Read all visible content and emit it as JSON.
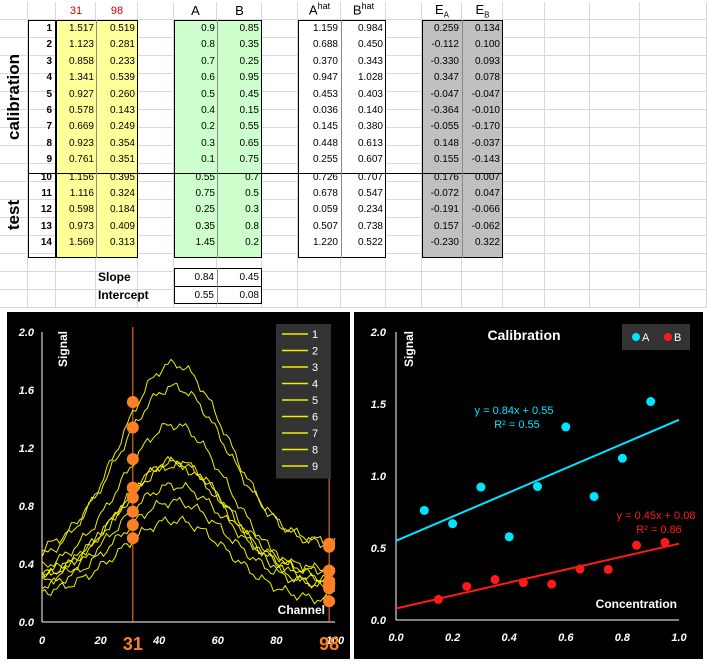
{
  "sheet": {
    "col_headers": {
      "c31": "31",
      "c98": "98",
      "A": "A",
      "B": "B",
      "Ahat_base": "A",
      "Ahat_sup": "hat",
      "Bhat_base": "B",
      "Bhat_sup": "hat",
      "EA_base": "E",
      "EA_sub": "A",
      "EB_base": "E",
      "EB_sub": "B"
    },
    "side_labels": {
      "calibration": "calibration",
      "test": "test"
    },
    "row_numbers": [
      "1",
      "2",
      "3",
      "4",
      "5",
      "6",
      "7",
      "8",
      "9",
      "10",
      "11",
      "12",
      "13",
      "14"
    ],
    "signal31": [
      "1.517",
      "1.123",
      "0.858",
      "1.341",
      "0.927",
      "0.578",
      "0.669",
      "0.923",
      "0.761",
      "1.156",
      "1.116",
      "0.598",
      "0.973",
      "1.569"
    ],
    "signal98": [
      "0.519",
      "0.281",
      "0.233",
      "0.539",
      "0.260",
      "0.143",
      "0.249",
      "0.354",
      "0.351",
      "0.395",
      "0.324",
      "0.184",
      "0.409",
      "0.313"
    ],
    "concA": [
      "0.9",
      "0.8",
      "0.7",
      "0.6",
      "0.5",
      "0.4",
      "0.2",
      "0.3",
      "0.1",
      "0.55",
      "0.75",
      "0.25",
      "0.35",
      "1.45"
    ],
    "concB": [
      "0.85",
      "0.35",
      "0.25",
      "0.95",
      "0.45",
      "0.15",
      "0.55",
      "0.65",
      "0.75",
      "0.7",
      "0.5",
      "0.3",
      "0.8",
      "0.2"
    ],
    "Ahat": [
      "1.159",
      "0.688",
      "0.370",
      "0.947",
      "0.453",
      "0.036",
      "0.145",
      "0.448",
      "0.255",
      "0.726",
      "0.678",
      "0.059",
      "0.507",
      "1.220"
    ],
    "Bhat": [
      "0.984",
      "0.450",
      "0.343",
      "1.028",
      "0.403",
      "0.140",
      "0.380",
      "0.613",
      "0.607",
      "0.707",
      "0.547",
      "0.234",
      "0.738",
      "0.522"
    ],
    "EA": [
      "0.259",
      "-0.112",
      "-0.330",
      "0.347",
      "-0.047",
      "-0.364",
      "-0.055",
      "0.148",
      "0.155",
      "0.176",
      "-0.072",
      "-0.191",
      "0.157",
      "-0.230"
    ],
    "EB": [
      "0.134",
      "0.100",
      "0.093",
      "0.078",
      "-0.047",
      "-0.010",
      "-0.170",
      "-0.037",
      "-0.143",
      "0.007",
      "0.047",
      "-0.066",
      "-0.062",
      "0.322"
    ],
    "slope_label": "Slope",
    "intercept_label": "Intercept",
    "slope": [
      "0.84",
      "0.45"
    ],
    "intercept": [
      "0.55",
      "0.08"
    ]
  },
  "chart_data": [
    {
      "type": "line",
      "ylabel": "Signal",
      "xlabel": "Channel",
      "xlim": [
        0,
        100
      ],
      "ylim": [
        0,
        2.0
      ],
      "xticks": [
        "0",
        "20",
        "40",
        "60",
        "80",
        "100"
      ],
      "yticks": [
        "0.0",
        "0.4",
        "0.8",
        "1.2",
        "1.6",
        "2.0"
      ],
      "marker_channels": [
        31,
        98
      ],
      "marker_labels": [
        "31",
        "98"
      ],
      "legend": [
        "1",
        "2",
        "3",
        "4",
        "5",
        "6",
        "7",
        "8",
        "9"
      ],
      "legend_position": "top-right",
      "series_color": "#f0f000",
      "marker_color": "#ff7f27",
      "series": [
        {
          "name": "1",
          "peak": 1.78,
          "base_left": 0.38,
          "base_right": 0.52
        },
        {
          "name": "2",
          "peak": 1.36,
          "base_left": 0.33,
          "base_right": 0.28
        },
        {
          "name": "3",
          "peak": 1.08,
          "base_left": 0.3,
          "base_right": 0.23
        },
        {
          "name": "4",
          "peak": 1.62,
          "base_left": 0.45,
          "base_right": 0.54
        },
        {
          "name": "5",
          "peak": 1.11,
          "base_left": 0.28,
          "base_right": 0.26
        },
        {
          "name": "6",
          "peak": 0.7,
          "base_left": 0.18,
          "base_right": 0.14
        },
        {
          "name": "7",
          "peak": 0.83,
          "base_left": 0.22,
          "base_right": 0.25
        },
        {
          "name": "8",
          "peak": 1.1,
          "base_left": 0.27,
          "base_right": 0.35
        },
        {
          "name": "9",
          "peak": 0.94,
          "base_left": 0.24,
          "base_right": 0.35
        }
      ],
      "points_31": [
        1.517,
        1.341,
        1.123,
        0.927,
        0.923,
        0.858,
        0.761,
        0.669,
        0.578
      ],
      "points_98": [
        0.539,
        0.519,
        0.354,
        0.351,
        0.281,
        0.26,
        0.249,
        0.233,
        0.143
      ]
    },
    {
      "type": "scatter",
      "title": "Calibration",
      "ylabel": "Signal",
      "xlabel": "Concentration",
      "xlim": [
        0,
        1.0
      ],
      "ylim": [
        0,
        2.0
      ],
      "xticks": [
        "0.0",
        "0.2",
        "0.4",
        "0.6",
        "0.8",
        "1.0"
      ],
      "yticks": [
        "0.0",
        "0.5",
        "1.0",
        "1.5",
        "2.0"
      ],
      "legend": [
        "A",
        "B"
      ],
      "legend_position": "top-right",
      "series": [
        {
          "name": "A",
          "color": "#00e5ff",
          "x": [
            0.9,
            0.8,
            0.7,
            0.6,
            0.5,
            0.4,
            0.2,
            0.3,
            0.1
          ],
          "y": [
            1.517,
            1.123,
            0.858,
            1.341,
            0.927,
            0.578,
            0.669,
            0.923,
            0.761
          ],
          "fit": {
            "slope": 0.84,
            "intercept": 0.55
          },
          "equation": "y = 0.84x + 0.55",
          "r2": "R² = 0.55"
        },
        {
          "name": "B",
          "color": "#ff1a1a",
          "x": [
            0.85,
            0.35,
            0.25,
            0.95,
            0.45,
            0.15,
            0.55,
            0.65,
            0.75
          ],
          "y": [
            0.519,
            0.281,
            0.233,
            0.539,
            0.26,
            0.143,
            0.249,
            0.354,
            0.351
          ],
          "fit": {
            "slope": 0.45,
            "intercept": 0.08
          },
          "equation": "y = 0.45x + 0.08",
          "r2": "R² = 0.86"
        }
      ]
    }
  ]
}
